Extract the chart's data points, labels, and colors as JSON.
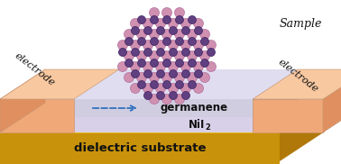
{
  "fig_width": 3.78,
  "fig_height": 1.82,
  "dpi": 100,
  "colors": {
    "electrode_face": "#F0A878",
    "electrode_top": "#F8C8A0",
    "electrode_side": "#E09060",
    "germanene_face": "#D0CDE0",
    "germanene_top": "#E0DDF0",
    "nii2_face": "#D8D0E8",
    "nii2_top": "#E4DCF0",
    "dielectric_face": "#C8920A",
    "dielectric_top": "#E8B820",
    "dielectric_right": "#B07808",
    "background": "#FFFFFF",
    "arrow_blue": "#3070C0",
    "text_dark": "#111111",
    "bond_color": "#A090B0",
    "atom_pink": "#D090B0",
    "atom_purple": "#604080"
  },
  "labels": {
    "sample": "Sample",
    "electrode": "electrode",
    "germanene": "germanene",
    "nii2_main": "NiI",
    "nii2_sub": "2",
    "dielectric": "dielectric substrate"
  }
}
